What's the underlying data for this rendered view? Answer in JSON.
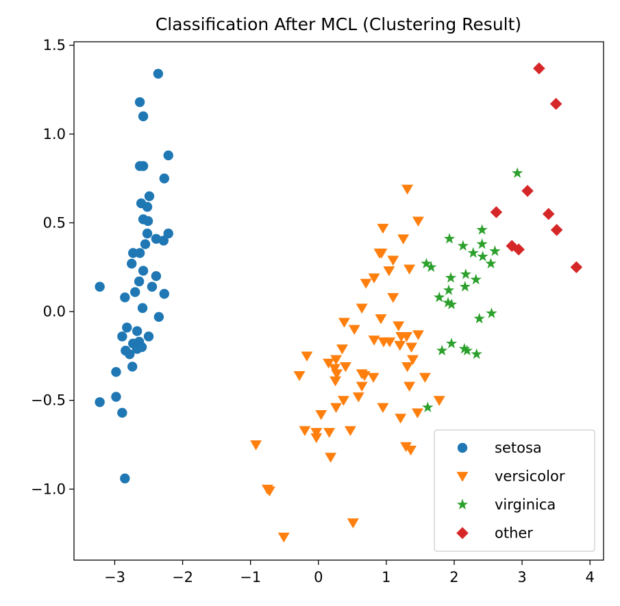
{
  "chart_data": {
    "type": "scatter",
    "title": "Classification After MCL (Clustering Result)",
    "xlabel": "",
    "ylabel": "",
    "xlim": [
      -3.6,
      4.2
    ],
    "ylim": [
      -1.4,
      1.52
    ],
    "grid": false,
    "legend_position": "lower-right",
    "x_ticks": [
      {
        "value": -3,
        "label": "−3"
      },
      {
        "value": -2,
        "label": "−2"
      },
      {
        "value": -1,
        "label": "−1"
      },
      {
        "value": 0,
        "label": "0"
      },
      {
        "value": 1,
        "label": "1"
      },
      {
        "value": 2,
        "label": "2"
      },
      {
        "value": 3,
        "label": "3"
      },
      {
        "value": 4,
        "label": "4"
      }
    ],
    "y_ticks": [
      {
        "value": 1.5,
        "label": "1.5"
      },
      {
        "value": 1.0,
        "label": "1.0"
      },
      {
        "value": 0.5,
        "label": "0.5"
      },
      {
        "value": 0.0,
        "label": "0.0"
      },
      {
        "value": -0.5,
        "label": "−0.5"
      },
      {
        "value": -1.0,
        "label": "−1.0"
      }
    ],
    "series": [
      {
        "name": "setosa",
        "marker": "circle",
        "color": "#1f77b4",
        "points": [
          [
            -2.36,
            1.34
          ],
          [
            -2.63,
            1.18
          ],
          [
            -2.58,
            1.1
          ],
          [
            -2.21,
            0.88
          ],
          [
            -2.63,
            0.82
          ],
          [
            -2.58,
            0.82
          ],
          [
            -2.27,
            0.75
          ],
          [
            -2.49,
            0.65
          ],
          [
            -2.61,
            0.61
          ],
          [
            -2.52,
            0.59
          ],
          [
            -2.58,
            0.52
          ],
          [
            -2.51,
            0.51
          ],
          [
            -2.21,
            0.44
          ],
          [
            -2.52,
            0.44
          ],
          [
            -2.39,
            0.41
          ],
          [
            -2.28,
            0.4
          ],
          [
            -2.55,
            0.38
          ],
          [
            -2.73,
            0.33
          ],
          [
            -2.63,
            0.33
          ],
          [
            -2.75,
            0.27
          ],
          [
            -2.58,
            0.23
          ],
          [
            -2.39,
            0.2
          ],
          [
            -2.64,
            0.17
          ],
          [
            -2.45,
            0.14
          ],
          [
            -3.22,
            0.14
          ],
          [
            -2.7,
            0.11
          ],
          [
            -2.27,
            0.1
          ],
          [
            -2.85,
            0.08
          ],
          [
            -2.59,
            0.02
          ],
          [
            -2.35,
            -0.03
          ],
          [
            -2.82,
            -0.09
          ],
          [
            -2.67,
            -0.11
          ],
          [
            -2.89,
            -0.14
          ],
          [
            -2.5,
            -0.14
          ],
          [
            -2.64,
            -0.17
          ],
          [
            -2.73,
            -0.18
          ],
          [
            -2.6,
            -0.2
          ],
          [
            -2.67,
            -0.21
          ],
          [
            -2.84,
            -0.22
          ],
          [
            -2.78,
            -0.24
          ],
          [
            -2.74,
            -0.31
          ],
          [
            -2.98,
            -0.34
          ],
          [
            -2.98,
            -0.48
          ],
          [
            -3.22,
            -0.51
          ],
          [
            -2.89,
            -0.57
          ],
          [
            -2.85,
            -0.94
          ]
        ]
      },
      {
        "name": "versicolor",
        "marker": "triangle-down",
        "color": "#ff7f0e",
        "points": [
          [
            1.31,
            0.69
          ],
          [
            1.47,
            0.51
          ],
          [
            0.95,
            0.47
          ],
          [
            1.25,
            0.41
          ],
          [
            0.93,
            0.33
          ],
          [
            1.1,
            0.29
          ],
          [
            0.9,
            0.33
          ],
          [
            1.04,
            0.23
          ],
          [
            1.34,
            0.24
          ],
          [
            0.82,
            0.19
          ],
          [
            0.7,
            0.16
          ],
          [
            1.1,
            0.08
          ],
          [
            0.64,
            0.02
          ],
          [
            1.18,
            -0.08
          ],
          [
            0.92,
            -0.04
          ],
          [
            0.38,
            -0.06
          ],
          [
            0.53,
            -0.1
          ],
          [
            1.22,
            -0.14
          ],
          [
            1.3,
            -0.14
          ],
          [
            1.47,
            -0.13
          ],
          [
            0.82,
            -0.16
          ],
          [
            1.05,
            -0.17
          ],
          [
            1.2,
            -0.19
          ],
          [
            0.96,
            -0.17
          ],
          [
            1.37,
            -0.2
          ],
          [
            0.35,
            -0.21
          ],
          [
            -0.17,
            -0.25
          ],
          [
            0.26,
            -0.27
          ],
          [
            0.15,
            -0.29
          ],
          [
            0.24,
            -0.32
          ],
          [
            0.4,
            -0.31
          ],
          [
            0.27,
            -0.35
          ],
          [
            1.31,
            -0.31
          ],
          [
            1.39,
            -0.27
          ],
          [
            0.64,
            -0.35
          ],
          [
            0.25,
            -0.39
          ],
          [
            -0.28,
            -0.36
          ],
          [
            0.81,
            -0.37
          ],
          [
            0.68,
            -0.36
          ],
          [
            1.57,
            -0.37
          ],
          [
            1.34,
            -0.42
          ],
          [
            0.64,
            -0.42
          ],
          [
            0.37,
            -0.5
          ],
          [
            0.59,
            -0.48
          ],
          [
            0.26,
            -0.54
          ],
          [
            1.78,
            -0.5
          ],
          [
            0.95,
            -0.54
          ],
          [
            1.46,
            -0.57
          ],
          [
            0.04,
            -0.58
          ],
          [
            1.21,
            -0.6
          ],
          [
            0.47,
            -0.67
          ],
          [
            0.16,
            -0.68
          ],
          [
            -0.2,
            -0.67
          ],
          [
            -0.03,
            -0.71
          ],
          [
            1.29,
            -0.76
          ],
          [
            1.36,
            -0.78
          ],
          [
            -0.92,
            -0.75
          ],
          [
            0.18,
            -0.82
          ],
          [
            -0.75,
            -1.0
          ],
          [
            -0.72,
            -1.01
          ],
          [
            -0.51,
            -1.27
          ],
          [
            0.51,
            -1.19
          ],
          [
            -0.03,
            -0.68
          ]
        ]
      },
      {
        "name": "virginica",
        "marker": "star",
        "color": "#2ca02c",
        "points": [
          [
            2.93,
            0.78
          ],
          [
            2.41,
            0.46
          ],
          [
            2.6,
            0.34
          ],
          [
            1.93,
            0.41
          ],
          [
            2.13,
            0.37
          ],
          [
            2.41,
            0.38
          ],
          [
            2.28,
            0.33
          ],
          [
            2.42,
            0.31
          ],
          [
            2.54,
            0.27
          ],
          [
            1.59,
            0.27
          ],
          [
            1.66,
            0.25
          ],
          [
            2.17,
            0.21
          ],
          [
            2.32,
            0.18
          ],
          [
            1.95,
            0.19
          ],
          [
            2.16,
            0.14
          ],
          [
            1.92,
            0.12
          ],
          [
            1.78,
            0.08
          ],
          [
            1.91,
            0.05
          ],
          [
            1.96,
            0.04
          ],
          [
            2.55,
            -0.01
          ],
          [
            2.37,
            -0.04
          ],
          [
            1.96,
            -0.18
          ],
          [
            1.82,
            -0.22
          ],
          [
            2.15,
            -0.21
          ],
          [
            2.19,
            -0.22
          ],
          [
            2.33,
            -0.24
          ],
          [
            1.61,
            -0.54
          ]
        ]
      },
      {
        "name": "other",
        "marker": "diamond",
        "color": "#d62728",
        "points": [
          [
            3.25,
            1.37
          ],
          [
            3.5,
            1.17
          ],
          [
            3.08,
            0.68
          ],
          [
            2.62,
            0.56
          ],
          [
            3.39,
            0.55
          ],
          [
            3.51,
            0.46
          ],
          [
            2.85,
            0.37
          ],
          [
            2.95,
            0.35
          ],
          [
            3.8,
            0.25
          ]
        ]
      }
    ]
  }
}
